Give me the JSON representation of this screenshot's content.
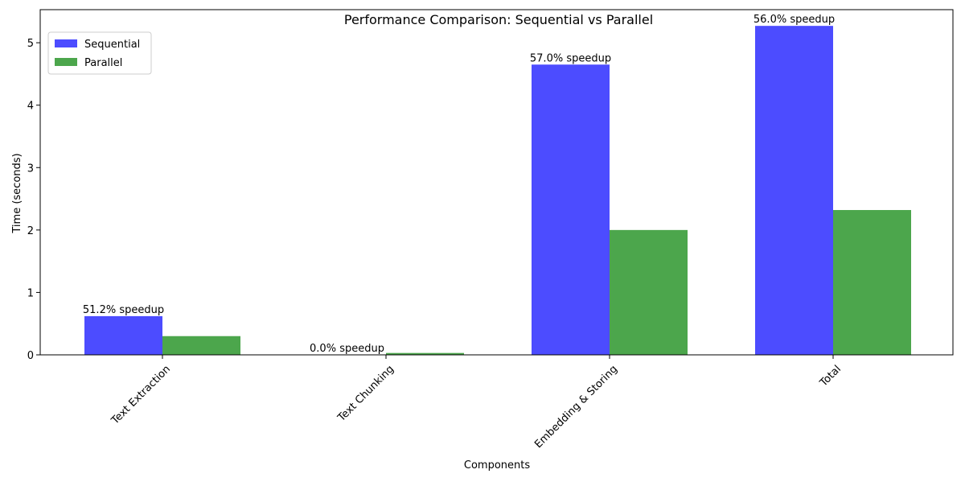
{
  "chart_data": {
    "type": "bar",
    "title": "Performance Comparison: Sequential vs Parallel",
    "xlabel": "Components",
    "ylabel": "Time (seconds)",
    "categories": [
      "Text Extraction",
      "Text Chunking",
      "Embedding & Storing",
      "Total"
    ],
    "series": [
      {
        "name": "Sequential",
        "color": "#4c4cff",
        "values": [
          0.62,
          0.0,
          4.65,
          5.27
        ]
      },
      {
        "name": "Parallel",
        "color": "#4ca64c",
        "values": [
          0.3,
          0.03,
          2.0,
          2.32
        ]
      }
    ],
    "annotations": [
      "51.2% speedup",
      "0.0% speedup",
      "57.0% speedup",
      "56.0% speedup"
    ],
    "ylim": [
      0,
      5.53
    ],
    "yticks": [
      0,
      1,
      2,
      3,
      4,
      5
    ],
    "grid": false,
    "legend_position": "top-left"
  }
}
